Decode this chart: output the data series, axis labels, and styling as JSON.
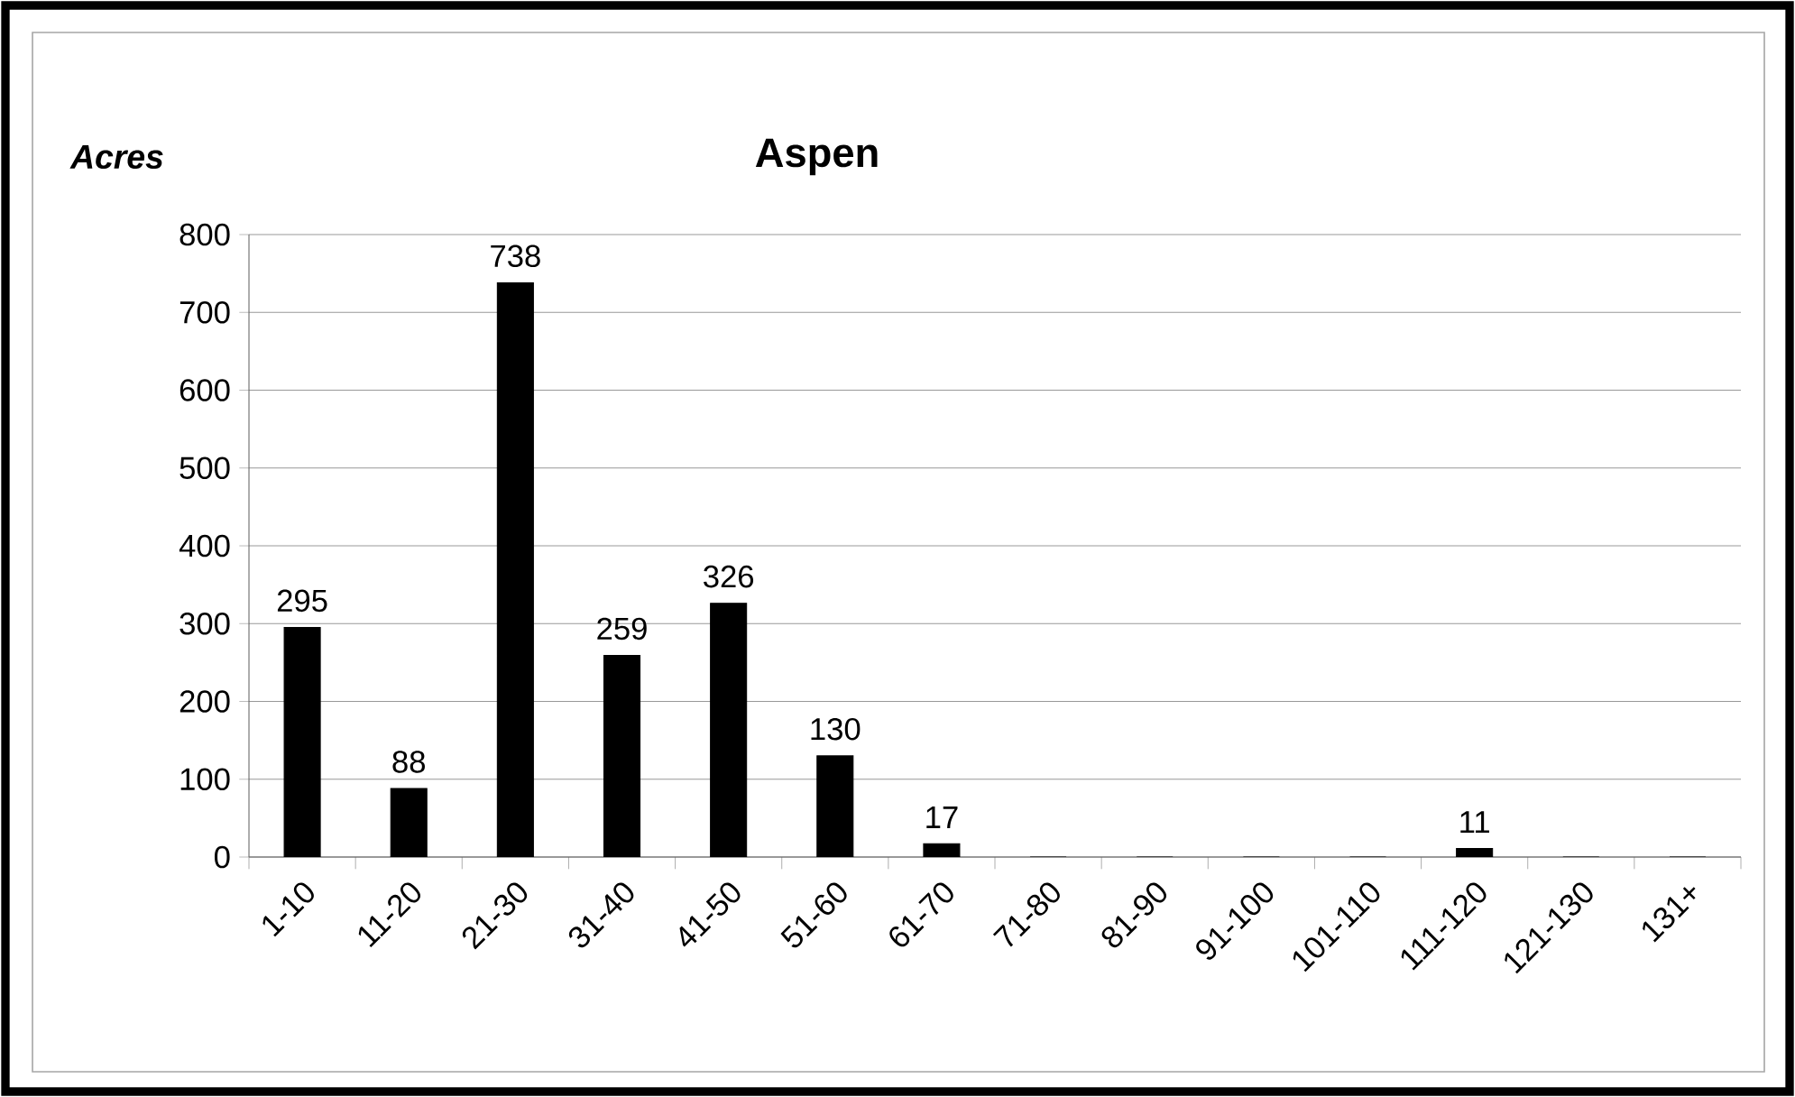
{
  "chart_data": {
    "type": "bar",
    "title": "Aspen",
    "ylabel": "Acres",
    "categories": [
      "1-10",
      "11-20",
      "21-30",
      "31-40",
      "41-50",
      "51-60",
      "61-70",
      "71-80",
      "81-90",
      "91-100",
      "101-110",
      "111-120",
      "121-130",
      "131+"
    ],
    "values": [
      295,
      88,
      738,
      259,
      326,
      130,
      17,
      0,
      0,
      0,
      0,
      11,
      0,
      0
    ],
    "value_labels": [
      "295",
      "88",
      "738",
      "259",
      "326",
      "130",
      "17",
      null,
      null,
      null,
      null,
      "11",
      null,
      null
    ],
    "color": "#000000",
    "ylim": [
      0,
      800
    ],
    "yticks": [
      0,
      100,
      200,
      300,
      400,
      500,
      600,
      700,
      800
    ],
    "grid": "y"
  }
}
